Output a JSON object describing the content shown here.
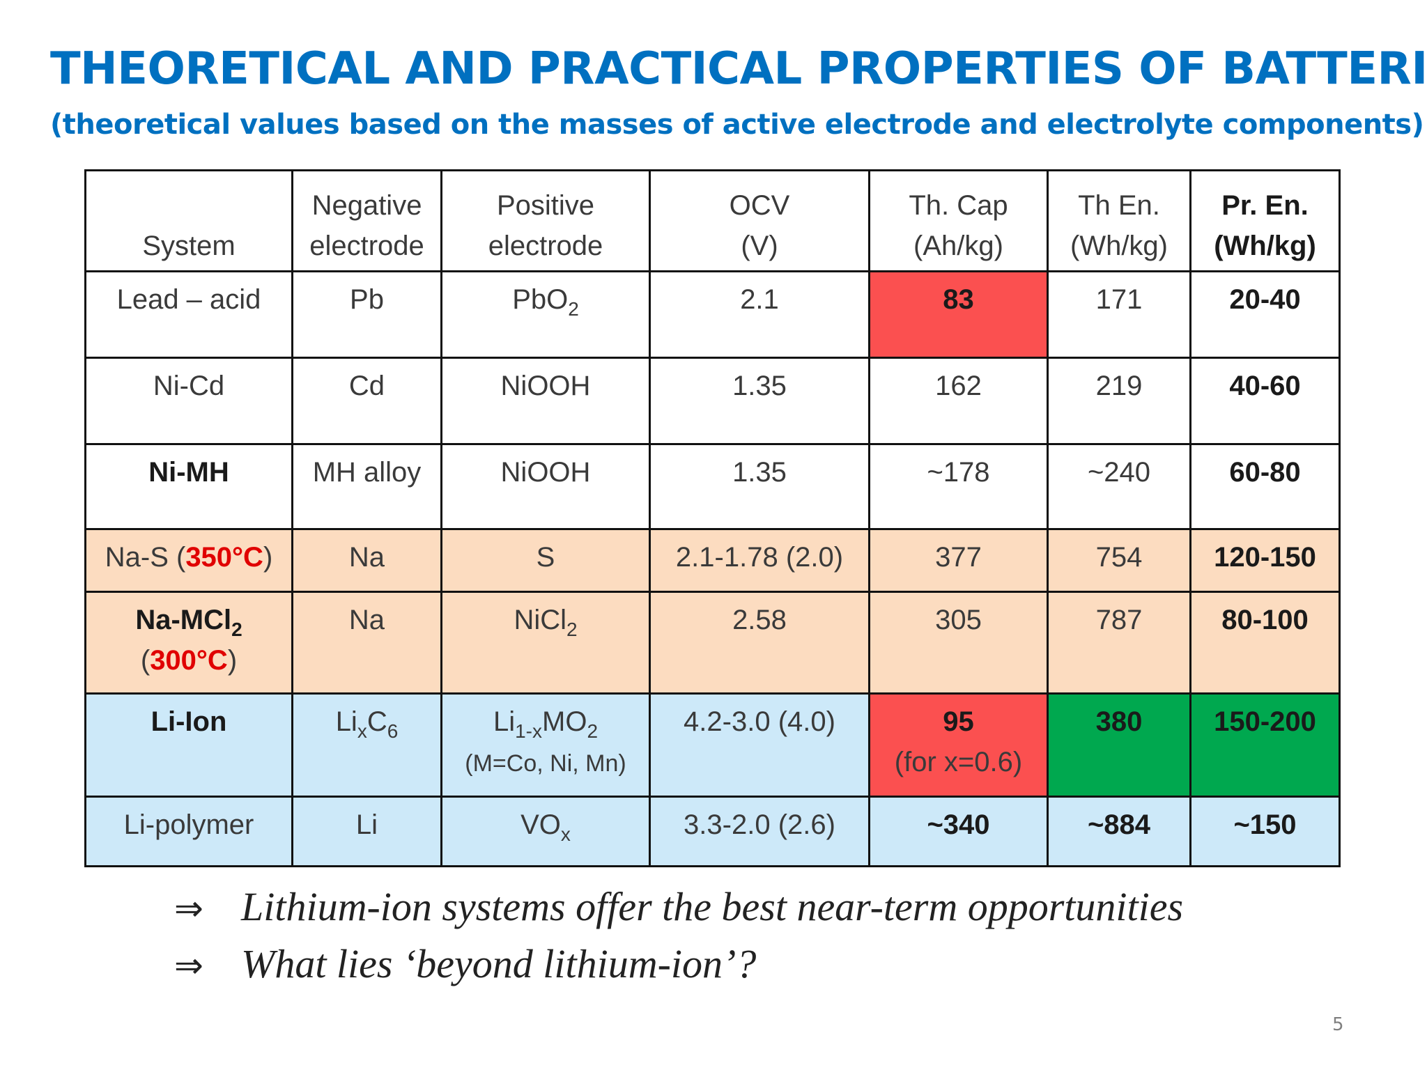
{
  "title": "THEORETICAL AND PRACTICAL PROPERTIES OF BATTERIES",
  "subtitle": "(theoretical values based on the masses of active electrode and electrolyte components)",
  "table": {
    "headers": {
      "system": "System",
      "neg_l1": "Negative",
      "neg_l2": "electrode",
      "pos_l1": "Positive",
      "pos_l2": "electrode",
      "ocv_l1": "OCV",
      "ocv_l2": "(V)",
      "cap_l1": "Th. Cap",
      "cap_l2": "(Ah/kg)",
      "en_l1": "Th En.",
      "en_l2": "(Wh/kg)",
      "pr_l1": "Pr. En.",
      "pr_l2": "(Wh/kg)"
    },
    "rows": [
      {
        "system": "Lead – acid",
        "neg": "Pb",
        "pos": "PbO",
        "pos_sub": "2",
        "ocv": "2.1",
        "cap": "83",
        "en": "171",
        "pr": "20-40"
      },
      {
        "system": "Ni-Cd",
        "neg": "Cd",
        "pos": "NiOOH",
        "ocv": "1.35",
        "cap": "162",
        "en": "219",
        "pr": "40-60"
      },
      {
        "system": "Ni-MH",
        "neg": "MH alloy",
        "pos": "NiOOH",
        "ocv": "1.35",
        "cap": "~178",
        "en": "~240",
        "pr": "60-80"
      },
      {
        "system": "Na-S (",
        "system_temp": "350°C",
        "system_end": ")",
        "neg": "Na",
        "pos": "S",
        "ocv": "2.1-1.78 (2.0)",
        "cap": "377",
        "en": "754",
        "pr": "120-150"
      },
      {
        "system": "Na-MCl",
        "system_sub": "2",
        "system_l2_open": "(",
        "system_temp": "300°C",
        "system_l2_close": ")",
        "neg": "Na",
        "pos": "NiCl",
        "pos_sub": "2",
        "ocv": "2.58",
        "cap": "305",
        "en": "787",
        "pr": "80-100"
      },
      {
        "system": "Li-Ion",
        "neg": "Li",
        "neg_sub1": "x",
        "neg_mid": "C",
        "neg_sub2": "6",
        "pos": "Li",
        "pos_sub1": "1-x",
        "pos_mid": "MO",
        "pos_sub2": "2",
        "pos_note": "(M=Co, Ni, Mn)",
        "ocv": "4.2-3.0 (4.0)",
        "cap": "95",
        "cap_note": "(for x=0.6)",
        "en": "380",
        "pr": "150-200"
      },
      {
        "system": "Li-polymer",
        "neg": "Li",
        "pos": "VO",
        "pos_sub": "x",
        "ocv": "3.3-2.0 (2.6)",
        "cap": "~340",
        "en": "~884",
        "pr": "~150"
      }
    ]
  },
  "bullets": [
    {
      "arrow": "⇒",
      "text": "Lithium-ion systems offer the best near-term opportunities"
    },
    {
      "arrow": "⇒",
      "text": "What lies ‘beyond lithium-ion’?"
    }
  ],
  "page_number": "5",
  "colors": {
    "title": "#0070c0",
    "highlight_red": "#fb5050",
    "highlight_green": "#00a84f",
    "peach_rows": "#fcdcc0",
    "blue_rows": "#cde9f9",
    "temp_text": "#e00000"
  }
}
